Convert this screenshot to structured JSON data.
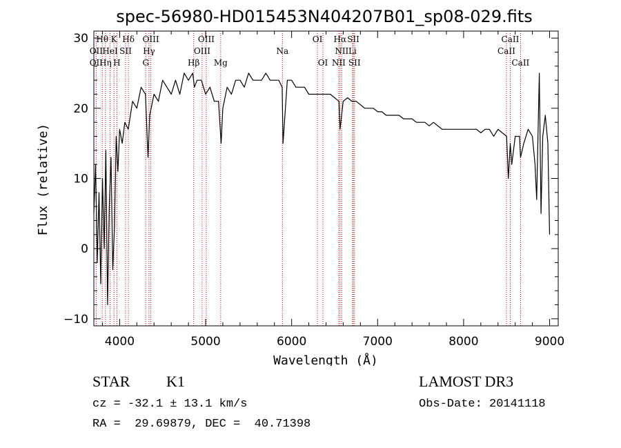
{
  "chart_data": {
    "type": "line",
    "title": "spec-56980-HD015453N404207B01_sp08-029.fits",
    "xlabel": "Wavelength (Å)",
    "ylabel": "Flux (relative)",
    "xlim": [
      3700,
      9100
    ],
    "ylim": [
      -11,
      31
    ],
    "xticks": [
      4000,
      5000,
      6000,
      7000,
      8000,
      9000
    ],
    "yticks": [
      -10,
      0,
      10,
      20,
      30
    ],
    "grid": false,
    "series": [
      {
        "x": [
          3700,
          3720,
          3740,
          3760,
          3780,
          3800,
          3820,
          3840,
          3860,
          3880,
          3900,
          3920,
          3940,
          3960,
          3980,
          4000,
          4030,
          4060,
          4100,
          4150,
          4200,
          4250,
          4300,
          4330,
          4350,
          4400,
          4450,
          4500,
          4550,
          4600,
          4650,
          4700,
          4750,
          4800,
          4850,
          4870,
          4900,
          4950,
          5000,
          5050,
          5100,
          5150,
          5180,
          5200,
          5250,
          5300,
          5350,
          5400,
          5450,
          5500,
          5550,
          5600,
          5650,
          5700,
          5750,
          5800,
          5850,
          5890,
          5900,
          5950,
          6000,
          6050,
          6100,
          6150,
          6200,
          6250,
          6300,
          6350,
          6400,
          6450,
          6500,
          6550,
          6563,
          6600,
          6650,
          6700,
          6750,
          6800,
          6850,
          6900,
          6950,
          7000,
          7050,
          7100,
          7150,
          7200,
          7250,
          7300,
          7350,
          7400,
          7450,
          7500,
          7550,
          7600,
          7650,
          7700,
          7750,
          7800,
          7850,
          7900,
          7950,
          8000,
          8050,
          8100,
          8150,
          8200,
          8250,
          8300,
          8350,
          8400,
          8450,
          8500,
          8520,
          8542,
          8560,
          8600,
          8650,
          8662,
          8700,
          8750,
          8800,
          8830,
          8850,
          8880,
          8900,
          8920,
          8950,
          8980,
          9000
        ],
        "y": [
          5,
          12,
          -2,
          8,
          -5,
          10,
          0,
          14,
          -8,
          6,
          13,
          -3,
          3,
          16,
          11,
          17,
          15,
          18,
          17,
          21,
          20,
          23,
          22,
          13,
          19,
          22,
          21,
          24,
          23,
          22,
          24,
          22,
          25,
          24,
          25,
          23,
          24,
          24,
          22,
          23,
          21,
          21,
          15,
          20,
          23,
          22,
          24,
          24,
          23,
          25,
          24,
          24,
          24,
          25,
          24,
          24,
          24,
          23,
          15,
          24,
          24,
          23,
          23,
          23,
          22,
          22,
          22,
          22,
          22,
          22,
          21.5,
          21,
          17,
          21,
          21.5,
          21,
          21,
          20.5,
          20,
          20,
          20,
          19.5,
          19.5,
          19,
          19,
          19,
          19,
          18.5,
          18.5,
          18.5,
          18,
          18,
          18,
          17.5,
          18,
          17.5,
          17,
          17,
          17,
          17,
          17,
          17,
          17,
          17,
          17,
          16.5,
          17,
          17,
          16,
          17,
          16.5,
          16,
          10,
          15,
          12,
          16,
          16,
          13,
          15,
          17,
          16,
          12,
          7,
          25,
          5,
          16,
          19,
          15,
          2
        ]
      }
    ],
    "lines_row1": [
      {
        "label": "Hθ",
        "x": 3798
      },
      {
        "label": "K",
        "x": 3934
      },
      {
        "label": "Hδ",
        "x": 4102
      },
      {
        "label": "OIII",
        "x": 4363
      },
      {
        "label": "OIII",
        "x": 5007
      },
      {
        "label": "OI",
        "x": 6300
      },
      {
        "label": "Hα",
        "x": 6563
      },
      {
        "label": "SII",
        "x": 6717
      },
      {
        "label": "CaII",
        "x": 8542
      }
    ],
    "lines_row2": [
      {
        "label": "OII",
        "x": 3727
      },
      {
        "label": "HeI",
        "x": 3889
      },
      {
        "label": "SII",
        "x": 4069
      },
      {
        "label": "Hγ",
        "x": 4341
      },
      {
        "label": "OIII",
        "x": 4959
      },
      {
        "label": "Na",
        "x": 5893
      },
      {
        "label": "NII",
        "x": 6583
      },
      {
        "label": "Li",
        "x": 6708
      },
      {
        "label": "CaII",
        "x": 8498
      }
    ],
    "lines_row3": [
      {
        "label": "OII",
        "x": 3727
      },
      {
        "label": "Hη",
        "x": 3835
      },
      {
        "label": "H",
        "x": 3968
      },
      {
        "label": "G",
        "x": 4304
      },
      {
        "label": "Hβ",
        "x": 4861
      },
      {
        "label": "Mg",
        "x": 5175
      },
      {
        "label": "OI",
        "x": 6364
      },
      {
        "label": "NII",
        "x": 6548
      },
      {
        "label": "SII",
        "x": 6731
      },
      {
        "label": "CaII",
        "x": 8662
      }
    ],
    "red_lines": [
      3727,
      3798,
      3835,
      3889,
      3934,
      3968,
      4069,
      4102,
      4304,
      4341,
      4363,
      4861,
      4959,
      5007,
      5175,
      5893,
      6300,
      6364,
      6548,
      6563,
      6583,
      6708,
      6717,
      6731,
      8498,
      8542,
      8662
    ]
  },
  "info": {
    "type_label": "STAR",
    "subclass": "K1",
    "survey": "LAMOST DR3",
    "cz": "cz = -32.1 ± 13.1 km/s",
    "obs_date": "Obs-Date: 20141118",
    "coords": "RA =  29.69879, DEC =  40.71398"
  },
  "colors": {
    "line_marker": "#c00000",
    "spectrum": "#000000"
  }
}
